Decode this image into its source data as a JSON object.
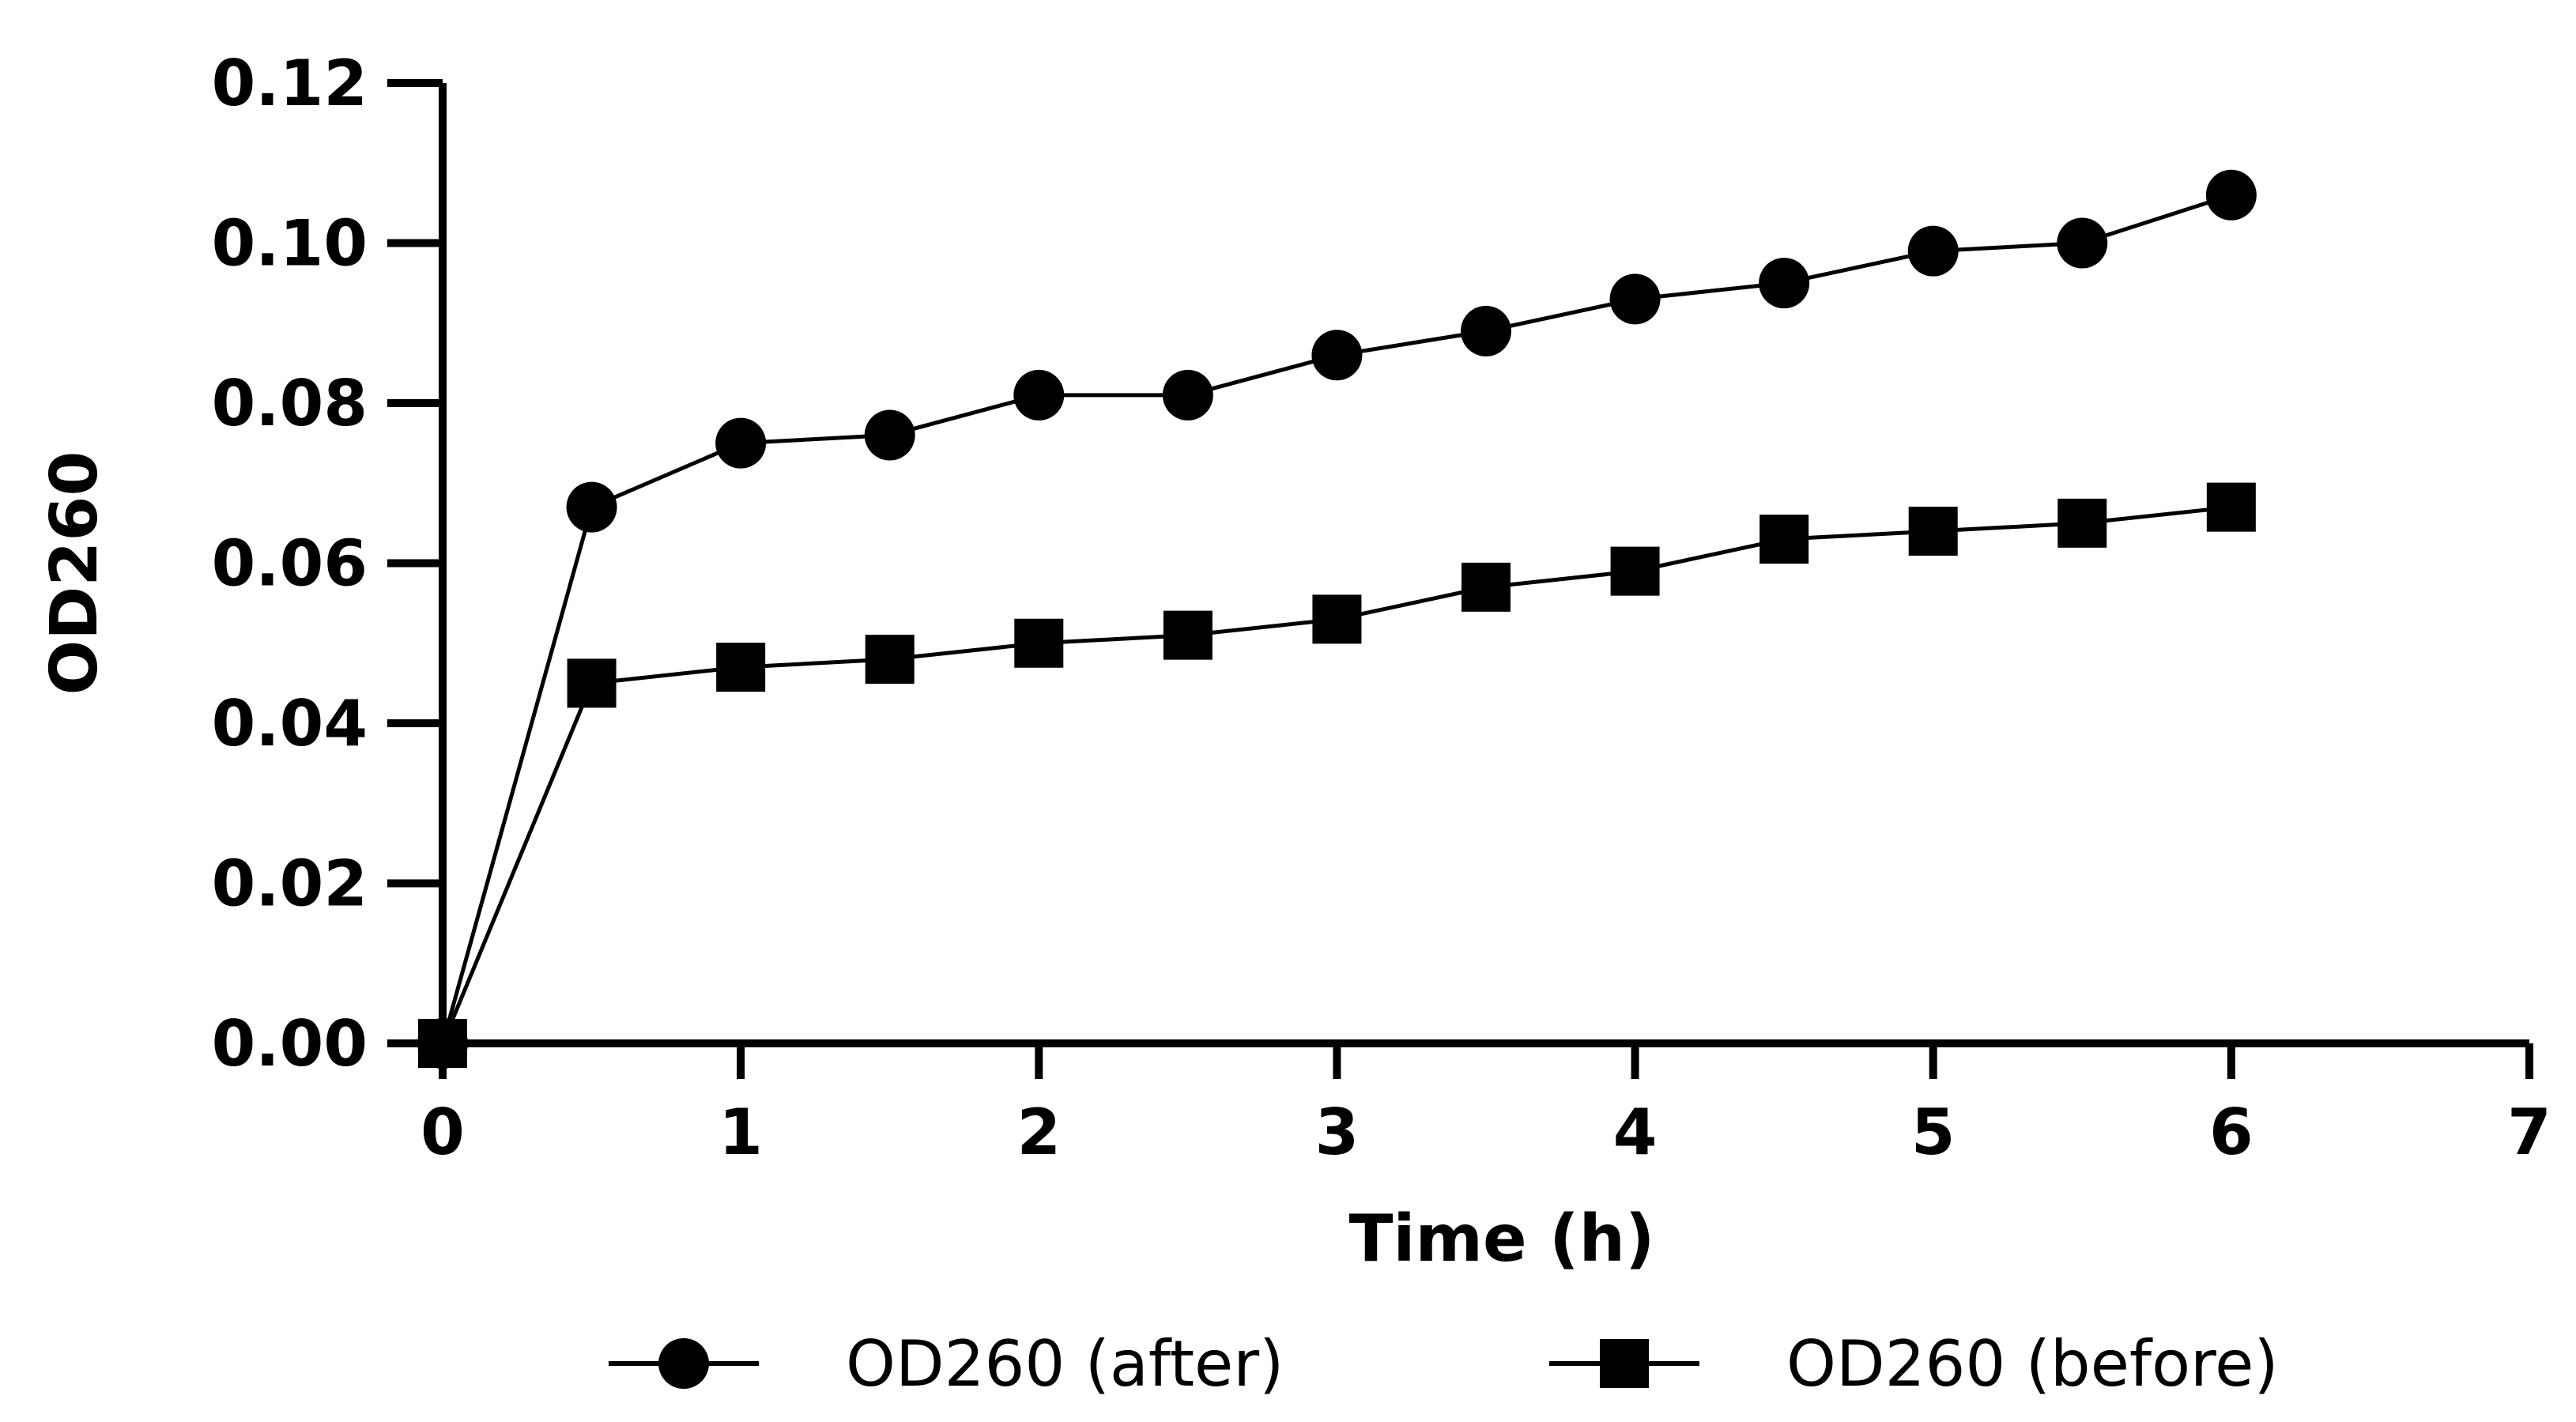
{
  "chart_data": {
    "type": "line",
    "title": "",
    "xlabel": "Time (h)",
    "ylabel": "OD260",
    "xlim": [
      0,
      7
    ],
    "ylim": [
      0,
      0.12
    ],
    "x_ticks": [
      "0",
      "1",
      "2",
      "3",
      "4",
      "5",
      "6",
      "7"
    ],
    "y_ticks": [
      "0.00",
      "0.02",
      "0.04",
      "0.06",
      "0.08",
      "0.10",
      "0.12"
    ],
    "grid": false,
    "legend_position": "bottom",
    "series": [
      {
        "name": "OD260 (after)",
        "marker": "circle",
        "color": "#000000",
        "x": [
          0,
          0.5,
          1,
          1.5,
          2,
          2.5,
          3,
          3.5,
          4,
          4.5,
          5,
          5.5,
          6
        ],
        "y": [
          0,
          0.067,
          0.075,
          0.076,
          0.081,
          0.081,
          0.086,
          0.089,
          0.093,
          0.095,
          0.099,
          0.1,
          0.106
        ]
      },
      {
        "name": "OD260 (before)",
        "marker": "square",
        "color": "#000000",
        "x": [
          0,
          0.5,
          1,
          1.5,
          2,
          2.5,
          3,
          3.5,
          4,
          4.5,
          5,
          5.5,
          6
        ],
        "y": [
          0,
          0.045,
          0.047,
          0.048,
          0.05,
          0.051,
          0.053,
          0.057,
          0.059,
          0.063,
          0.064,
          0.065,
          0.067
        ]
      }
    ]
  }
}
